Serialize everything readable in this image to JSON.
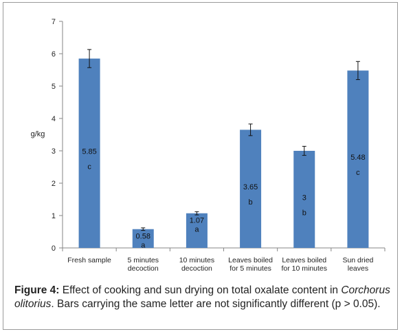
{
  "chart_data": {
    "type": "bar",
    "ylabel": "g/kg",
    "xlabel": "",
    "ylim": [
      0,
      7
    ],
    "yticks": [
      0,
      1,
      2,
      3,
      4,
      5,
      6,
      7
    ],
    "grid": false,
    "legend": "none",
    "bar_color": "#4f81bd",
    "categories": [
      [
        "Fresh sample"
      ],
      [
        "5 minutes",
        "decoction"
      ],
      [
        "10 minutes",
        "decoction"
      ],
      [
        "Leaves boiled",
        "for 5 minutes"
      ],
      [
        "Leaves boiled",
        "for 10 minutes"
      ],
      [
        "Sun dried",
        "leaves"
      ]
    ],
    "values": [
      5.85,
      0.58,
      1.07,
      3.65,
      3,
      5.48
    ],
    "value_labels": [
      "5.85",
      "0.58",
      "1.07",
      "3.65",
      "3",
      "5.48"
    ],
    "error": [
      0.28,
      0.04,
      0.05,
      0.18,
      0.14,
      0.28
    ],
    "letters": [
      "c",
      "a",
      "a",
      "b",
      "b",
      "c"
    ]
  },
  "caption": {
    "label": "Figure 4:",
    "text_a": " Effect of cooking and sun drying on total oxalate content in ",
    "species": "Corchorus olitorius",
    "text_b": ". Bars carrying the same letter are not significantly different (p > 0.05)."
  }
}
